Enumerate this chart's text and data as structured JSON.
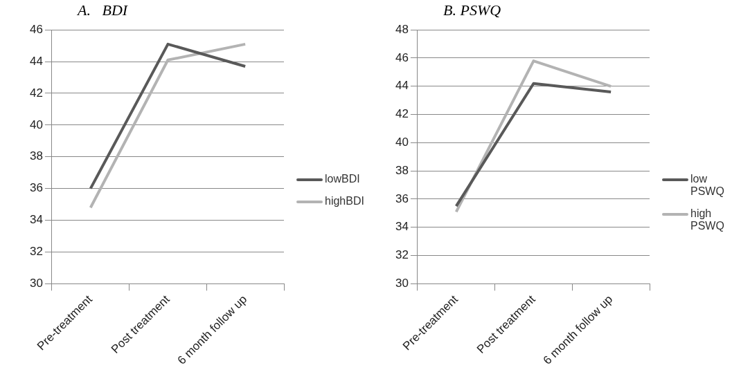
{
  "chart_data": [
    {
      "type": "line",
      "title": "A.   BDI",
      "categories": [
        "Pre-treatment",
        "Post treatment",
        "6 month follow up"
      ],
      "ylim": [
        30,
        46
      ],
      "yticks": [
        30,
        32,
        34,
        36,
        38,
        40,
        42,
        44,
        46
      ],
      "grid": "y",
      "legend": "right",
      "marker": "none",
      "series": [
        {
          "name": "lowBDI",
          "color": "#595959",
          "values": [
            36.0,
            45.1,
            43.7
          ]
        },
        {
          "name": "highBDI",
          "color": "#b3b3b3",
          "values": [
            34.8,
            44.1,
            45.1
          ]
        }
      ]
    },
    {
      "type": "line",
      "title": "B. PSWQ",
      "categories": [
        "Pre-treatment",
        "Post treatment",
        "6 month follow up"
      ],
      "ylim": [
        30,
        48
      ],
      "yticks": [
        30,
        32,
        34,
        36,
        38,
        40,
        42,
        44,
        46,
        48
      ],
      "grid": "y",
      "legend": "right",
      "marker": "none",
      "series": [
        {
          "name": "low PSWQ",
          "color": "#595959",
          "values": [
            35.5,
            44.2,
            43.6
          ]
        },
        {
          "name": "high PSWQ",
          "color": "#b3b3b3",
          "values": [
            35.1,
            45.8,
            44.0
          ]
        }
      ]
    }
  ]
}
